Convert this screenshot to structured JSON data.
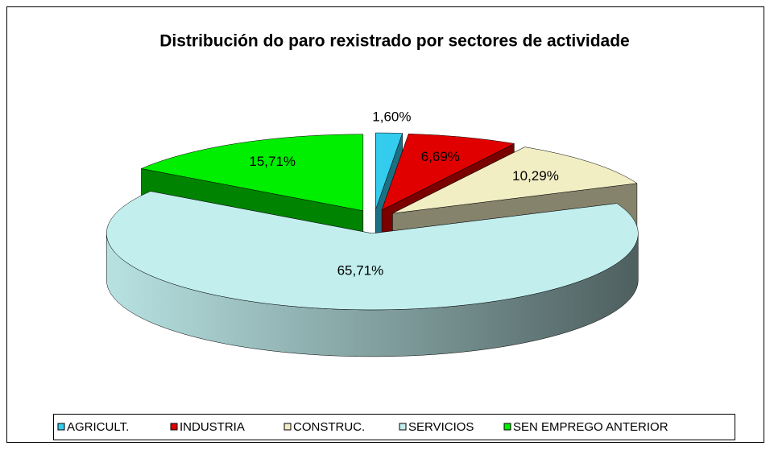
{
  "chart_data": {
    "type": "pie",
    "title": "Distribución do paro rexistrado por sectores de actividade",
    "categories": [
      "AGRICULT.",
      "INDUSTRIA",
      "CONSTRUC.",
      "SERVICIOS",
      "SEN EMPREGO ANTERIOR"
    ],
    "values": [
      1.6,
      6.69,
      10.29,
      65.71,
      15.71
    ],
    "value_labels": [
      "1,60%",
      "6,69%",
      "10,29%",
      "65,71%",
      "15,71%"
    ],
    "colors": [
      "#33ccee",
      "#e00000",
      "#f2eec4",
      "#c2eeee",
      "#00ee00"
    ],
    "legend": "bottom"
  }
}
